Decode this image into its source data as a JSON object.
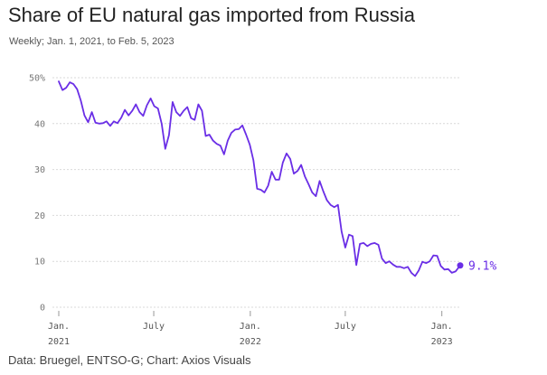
{
  "header": {
    "title": "Share of EU natural gas imported from Russia",
    "subtitle": "Weekly; Jan. 1, 2021, to Feb. 5, 2023"
  },
  "footer": {
    "source": "Data: Bruegel, ENTSO-G; Chart: Axios Visuals"
  },
  "colors": {
    "line": "#6a2ee6",
    "grid": "#d9d9d9",
    "axis_text": "#777777"
  },
  "chart_data": {
    "type": "line",
    "title": "Share of EU natural gas imported from Russia",
    "subtitle": "Weekly; Jan. 1, 2021, to Feb. 5, 2023",
    "xlabel": "",
    "ylabel": "",
    "unit": "%",
    "ylim": [
      0,
      50
    ],
    "xlim": [
      "2021-01-01",
      "2023-02-05"
    ],
    "grid": true,
    "yticks": [
      {
        "value": 0,
        "label": "0"
      },
      {
        "value": 10,
        "label": "10"
      },
      {
        "value": 20,
        "label": "20"
      },
      {
        "value": 30,
        "label": "30"
      },
      {
        "value": 40,
        "label": "40"
      },
      {
        "value": 50,
        "label": "50%"
      }
    ],
    "xticks": [
      {
        "date": "2021-01-01",
        "label": "Jan.",
        "sublabel": "2021"
      },
      {
        "date": "2021-07-01",
        "label": "July",
        "sublabel": ""
      },
      {
        "date": "2022-01-01",
        "label": "Jan.",
        "sublabel": "2022"
      },
      {
        "date": "2022-07-01",
        "label": "July",
        "sublabel": ""
      },
      {
        "date": "2023-01-01",
        "label": "Jan.",
        "sublabel": "2023"
      }
    ],
    "end_label": "9.1%",
    "series": [
      {
        "values": [
          [
            "2021-01-01",
            49.2
          ],
          [
            "2021-01-08",
            47.3
          ],
          [
            "2021-01-15",
            47.8
          ],
          [
            "2021-01-22",
            49.0
          ],
          [
            "2021-01-29",
            48.6
          ],
          [
            "2021-02-05",
            47.5
          ],
          [
            "2021-02-12",
            45.0
          ],
          [
            "2021-02-19",
            41.8
          ],
          [
            "2021-02-26",
            40.3
          ],
          [
            "2021-03-05",
            42.5
          ],
          [
            "2021-03-12",
            40.2
          ],
          [
            "2021-03-19",
            40.0
          ],
          [
            "2021-03-26",
            40.1
          ],
          [
            "2021-04-02",
            40.5
          ],
          [
            "2021-04-09",
            39.5
          ],
          [
            "2021-04-16",
            40.5
          ],
          [
            "2021-04-23",
            40.1
          ],
          [
            "2021-04-30",
            41.3
          ],
          [
            "2021-05-07",
            43.0
          ],
          [
            "2021-05-14",
            41.8
          ],
          [
            "2021-05-21",
            42.8
          ],
          [
            "2021-05-28",
            44.2
          ],
          [
            "2021-06-04",
            42.5
          ],
          [
            "2021-06-11",
            41.7
          ],
          [
            "2021-06-18",
            44.0
          ],
          [
            "2021-06-25",
            45.5
          ],
          [
            "2021-07-02",
            43.8
          ],
          [
            "2021-07-09",
            43.3
          ],
          [
            "2021-07-16",
            40.0
          ],
          [
            "2021-07-23",
            34.5
          ],
          [
            "2021-07-30",
            37.5
          ],
          [
            "2021-08-06",
            44.7
          ],
          [
            "2021-08-13",
            42.5
          ],
          [
            "2021-08-20",
            41.7
          ],
          [
            "2021-08-27",
            42.8
          ],
          [
            "2021-09-03",
            43.6
          ],
          [
            "2021-09-10",
            41.2
          ],
          [
            "2021-09-17",
            40.8
          ],
          [
            "2021-09-24",
            44.2
          ],
          [
            "2021-10-01",
            42.8
          ],
          [
            "2021-10-08",
            37.3
          ],
          [
            "2021-10-15",
            37.6
          ],
          [
            "2021-10-22",
            36.3
          ],
          [
            "2021-10-29",
            35.6
          ],
          [
            "2021-11-05",
            35.2
          ],
          [
            "2021-11-12",
            33.3
          ],
          [
            "2021-11-19",
            36.3
          ],
          [
            "2021-11-26",
            38.0
          ],
          [
            "2021-12-03",
            38.7
          ],
          [
            "2021-12-10",
            38.8
          ],
          [
            "2021-12-17",
            39.6
          ],
          [
            "2021-12-24",
            37.6
          ],
          [
            "2021-12-31",
            35.4
          ],
          [
            "2022-01-07",
            32.0
          ],
          [
            "2022-01-14",
            25.8
          ],
          [
            "2022-01-21",
            25.6
          ],
          [
            "2022-01-28",
            25.0
          ],
          [
            "2022-02-04",
            26.5
          ],
          [
            "2022-02-11",
            29.5
          ],
          [
            "2022-02-18",
            27.8
          ],
          [
            "2022-02-25",
            27.8
          ],
          [
            "2022-03-04",
            31.5
          ],
          [
            "2022-03-11",
            33.5
          ],
          [
            "2022-03-18",
            32.3
          ],
          [
            "2022-03-25",
            29.1
          ],
          [
            "2022-04-01",
            29.7
          ],
          [
            "2022-04-08",
            31.0
          ],
          [
            "2022-04-15",
            28.5
          ],
          [
            "2022-04-22",
            26.8
          ],
          [
            "2022-04-29",
            25.0
          ],
          [
            "2022-05-06",
            24.2
          ],
          [
            "2022-05-13",
            27.5
          ],
          [
            "2022-05-20",
            25.3
          ],
          [
            "2022-05-27",
            23.3
          ],
          [
            "2022-06-03",
            22.3
          ],
          [
            "2022-06-10",
            21.8
          ],
          [
            "2022-06-17",
            22.3
          ],
          [
            "2022-06-24",
            16.5
          ],
          [
            "2022-07-01",
            13.0
          ],
          [
            "2022-07-08",
            15.8
          ],
          [
            "2022-07-15",
            15.5
          ],
          [
            "2022-07-22",
            9.2
          ],
          [
            "2022-07-29",
            13.8
          ],
          [
            "2022-08-05",
            14.0
          ],
          [
            "2022-08-12",
            13.3
          ],
          [
            "2022-08-19",
            13.8
          ],
          [
            "2022-08-26",
            14.0
          ],
          [
            "2022-09-02",
            13.6
          ],
          [
            "2022-09-09",
            10.6
          ],
          [
            "2022-09-16",
            9.6
          ],
          [
            "2022-09-23",
            10.0
          ],
          [
            "2022-09-30",
            9.3
          ],
          [
            "2022-10-07",
            8.8
          ],
          [
            "2022-10-14",
            8.8
          ],
          [
            "2022-10-21",
            8.5
          ],
          [
            "2022-10-28",
            8.8
          ],
          [
            "2022-11-04",
            7.5
          ],
          [
            "2022-11-11",
            6.8
          ],
          [
            "2022-11-18",
            8.0
          ],
          [
            "2022-11-25",
            9.9
          ],
          [
            "2022-12-02",
            9.6
          ],
          [
            "2022-12-09",
            10.0
          ],
          [
            "2022-12-16",
            11.3
          ],
          [
            "2022-12-23",
            11.2
          ],
          [
            "2022-12-30",
            9.0
          ],
          [
            "2023-01-06",
            8.2
          ],
          [
            "2023-01-13",
            8.3
          ],
          [
            "2023-01-20",
            7.5
          ],
          [
            "2023-01-27",
            7.8
          ],
          [
            "2023-02-05",
            9.1
          ]
        ]
      }
    ]
  }
}
